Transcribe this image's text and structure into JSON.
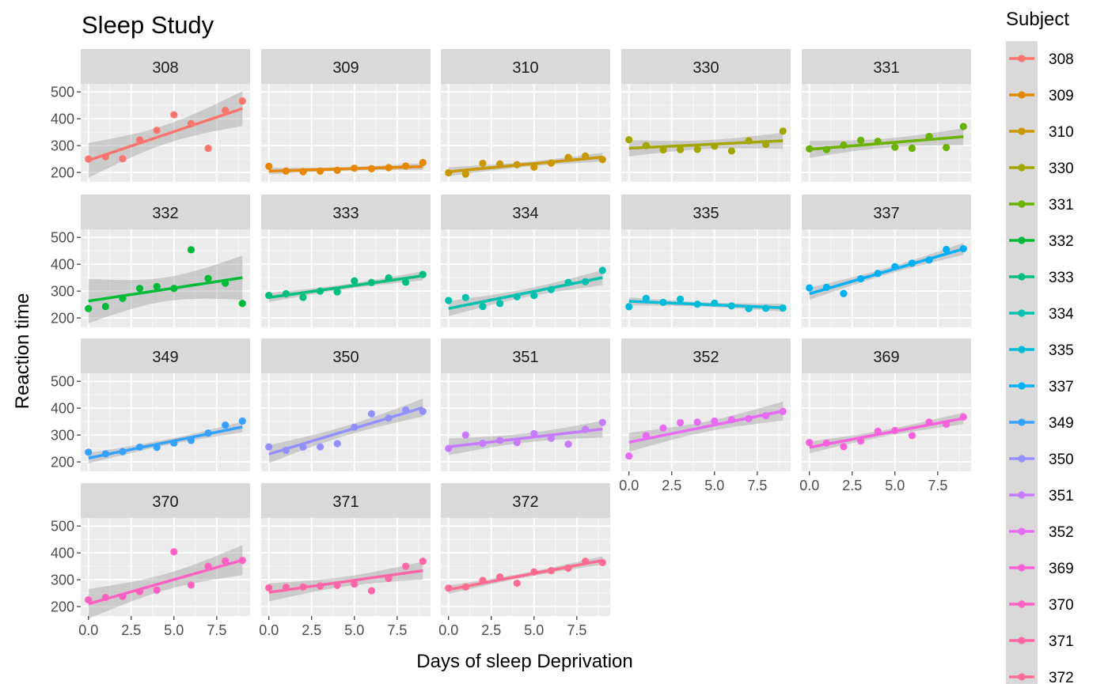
{
  "chart_data": {
    "type": "scatter",
    "title": "Sleep Study",
    "xlabel": "Days of sleep Deprivation",
    "ylabel": "Reaction time",
    "legend_title": "Subject",
    "legend_position": "right",
    "grid": true,
    "facet_layout": {
      "columns": 5,
      "rows": 4
    },
    "x_ticks": [
      "0.0",
      "2.5",
      "5.0",
      "7.5"
    ],
    "y_ticks": [
      "200",
      "300",
      "400",
      "500"
    ],
    "xlim": [
      -0.45,
      9.45
    ],
    "ylim": [
      165,
      530
    ],
    "x_days": [
      0,
      1,
      2,
      3,
      4,
      5,
      6,
      7,
      8,
      9
    ],
    "series": [
      {
        "name": "308",
        "color": "#F8766D",
        "values": [
          250,
          259,
          251,
          321,
          357,
          415,
          382,
          290,
          431,
          466
        ],
        "fit": [
          245,
          438
        ]
      },
      {
        "name": "309",
        "color": "#E58700",
        "values": [
          223,
          205,
          203,
          205,
          208,
          216,
          214,
          218,
          224,
          237
        ],
        "fit": [
          205,
          222
        ]
      },
      {
        "name": "310",
        "color": "#C99800",
        "values": [
          199,
          194,
          234,
          232,
          229,
          220,
          235,
          256,
          261,
          248
        ],
        "fit": [
          203,
          257
        ]
      },
      {
        "name": "330",
        "color": "#A3A500",
        "values": [
          322,
          300,
          284,
          285,
          286,
          298,
          280,
          318,
          305,
          354
        ],
        "fit": [
          290,
          318
        ]
      },
      {
        "name": "331",
        "color": "#6BB100",
        "values": [
          288,
          285,
          302,
          320,
          316,
          294,
          290,
          334,
          293,
          371
        ],
        "fit": [
          286,
          333
        ]
      },
      {
        "name": "332",
        "color": "#00BA38",
        "values": [
          235,
          243,
          273,
          310,
          317,
          310,
          454,
          347,
          330,
          254
        ],
        "fit": [
          263,
          350
        ]
      },
      {
        "name": "333",
        "color": "#00BF7D",
        "values": [
          284,
          290,
          277,
          300,
          297,
          338,
          332,
          349,
          333,
          362
        ],
        "fit": [
          276,
          357
        ]
      },
      {
        "name": "334",
        "color": "#00C0AF",
        "values": [
          265,
          276,
          243,
          254,
          279,
          284,
          306,
          332,
          335,
          377
        ],
        "fit": [
          235,
          350
        ]
      },
      {
        "name": "335",
        "color": "#00BCD8",
        "values": [
          242,
          273,
          258,
          270,
          251,
          255,
          245,
          235,
          236,
          237
        ],
        "fit": [
          262,
          238
        ]
      },
      {
        "name": "337",
        "color": "#00B0F6",
        "values": [
          312,
          314,
          291,
          346,
          366,
          391,
          404,
          416,
          455,
          458
        ],
        "fit": [
          290,
          457
        ]
      },
      {
        "name": "349",
        "color": "#35A2FF",
        "values": [
          236,
          230,
          238,
          255,
          254,
          270,
          280,
          307,
          337,
          352
        ],
        "fit": [
          214,
          330
        ]
      },
      {
        "name": "350",
        "color": "#9590FF",
        "values": [
          256,
          243,
          255,
          256,
          268,
          329,
          379,
          363,
          393,
          388
        ],
        "fit": [
          229,
          402
        ]
      },
      {
        "name": "351",
        "color": "#C77CFF",
        "values": [
          250,
          300,
          269,
          280,
          272,
          305,
          288,
          266,
          321,
          347
        ],
        "fit": [
          256,
          322
        ]
      },
      {
        "name": "352",
        "color": "#E76BF3",
        "values": [
          222,
          298,
          326,
          346,
          348,
          352,
          357,
          361,
          372,
          388
        ],
        "fit": [
          273,
          389
        ]
      },
      {
        "name": "369",
        "color": "#FA62DB",
        "values": [
          272,
          270,
          257,
          278,
          314,
          317,
          298,
          348,
          340,
          367
        ],
        "fit": [
          254,
          362
        ]
      },
      {
        "name": "370",
        "color": "#FF61C3",
        "values": [
          225,
          234,
          238,
          256,
          261,
          404,
          280,
          350,
          370,
          372
        ],
        "fit": [
          210,
          373
        ]
      },
      {
        "name": "371",
        "color": "#FF66A8",
        "values": [
          270,
          272,
          273,
          277,
          279,
          284,
          259,
          305,
          350,
          369
        ],
        "fit": [
          253,
          334
        ]
      },
      {
        "name": "372",
        "color": "#FF6C91",
        "values": [
          269,
          273,
          297,
          310,
          287,
          329,
          334,
          343,
          369,
          364
        ],
        "fit": [
          263,
          372
        ]
      }
    ]
  }
}
